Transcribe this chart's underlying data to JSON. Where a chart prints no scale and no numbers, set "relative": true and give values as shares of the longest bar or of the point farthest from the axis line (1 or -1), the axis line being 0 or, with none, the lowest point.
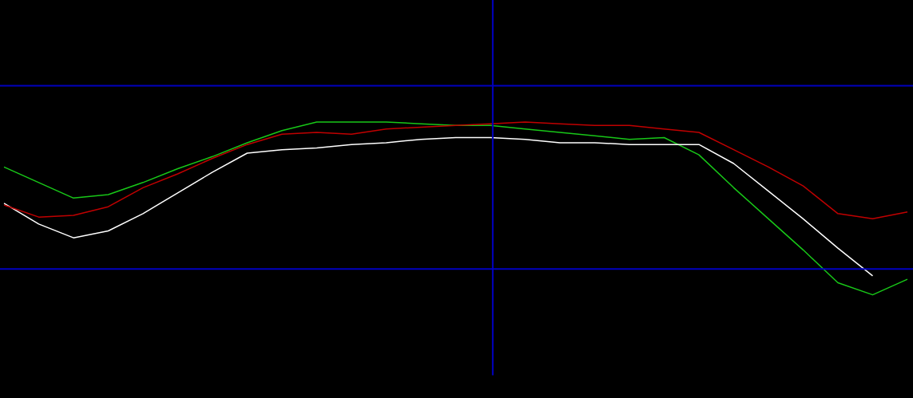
{
  "chart_data": {
    "type": "line",
    "relative": true,
    "legend": false,
    "marker": "none",
    "line_style": "solid",
    "categories": [
      null,
      null,
      null,
      null,
      null,
      null,
      null,
      null,
      null,
      null,
      null,
      null,
      null,
      null,
      null,
      null,
      null,
      null,
      null,
      null,
      null,
      null,
      null,
      null,
      null,
      null,
      null
    ],
    "series": [
      {
        "color": "#c00000",
        "values": [
          0.52,
          0.45,
          0.46,
          0.51,
          0.62,
          0.7,
          0.79,
          0.87,
          0.93,
          0.94,
          0.93,
          0.96,
          0.97,
          0.98,
          0.99,
          1.0,
          0.99,
          0.98,
          0.98,
          0.96,
          0.94,
          0.84,
          0.74,
          0.63,
          0.47,
          0.44,
          0.48
        ]
      },
      {
        "color": "#ffffff",
        "values": [
          0.53,
          0.41,
          0.33,
          0.37,
          0.47,
          0.59,
          0.71,
          0.82,
          0.84,
          0.85,
          0.87,
          0.88,
          0.9,
          0.91,
          0.91,
          0.9,
          0.88,
          0.88,
          0.87,
          0.87,
          0.87,
          0.76,
          0.6,
          0.44,
          0.27,
          0.11,
          null
        ]
      },
      {
        "color": "#18c818",
        "values": [
          0.74,
          0.65,
          0.56,
          0.58,
          0.65,
          0.73,
          0.8,
          0.88,
          0.95,
          1.0,
          1.0,
          1.0,
          0.99,
          0.98,
          0.98,
          0.96,
          0.94,
          0.92,
          0.9,
          0.91,
          0.81,
          0.62,
          0.44,
          0.26,
          0.07,
          0.0,
          0.09
        ]
      }
    ],
    "ref_lines": [
      {
        "axis": "y",
        "value": 1.21,
        "color": "#0000c0"
      },
      {
        "axis": "y",
        "value": 0.15,
        "color": "#0000c0"
      }
    ]
  }
}
